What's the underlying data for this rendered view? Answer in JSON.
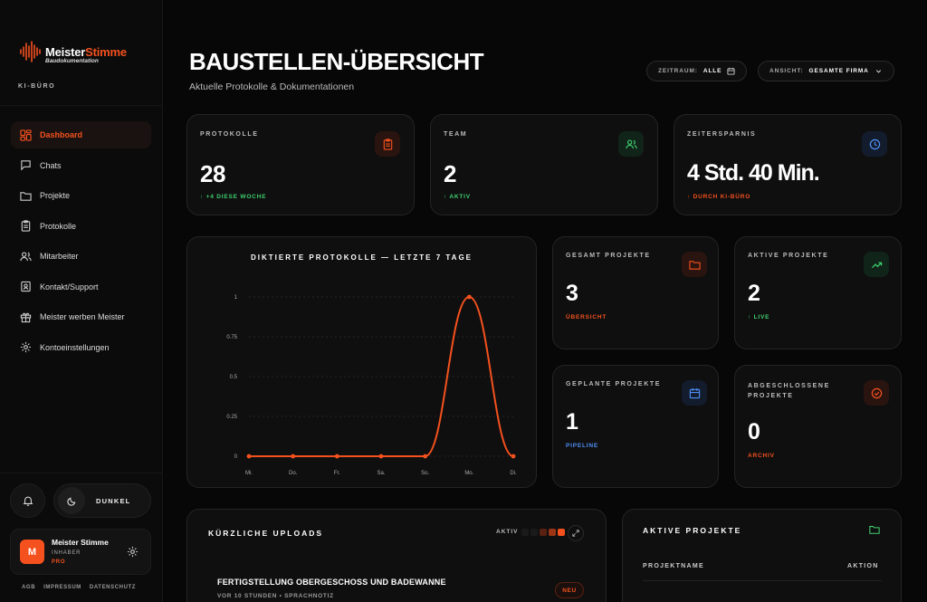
{
  "app": {
    "logo_name_a": "Meister",
    "logo_name_b": "Stimme",
    "logo_sub": "Baudokumentation",
    "section_label": "KI-BÜRO"
  },
  "nav": [
    {
      "label": "Dashboard",
      "icon": "dashboard-icon",
      "active": true
    },
    {
      "label": "Chats",
      "icon": "chat-icon"
    },
    {
      "label": "Projekte",
      "icon": "folder-icon"
    },
    {
      "label": "Protokolle",
      "icon": "clipboard-icon"
    },
    {
      "label": "Mitarbeiter",
      "icon": "users-icon"
    },
    {
      "label": "Kontakt/Support",
      "icon": "contact-card-icon"
    },
    {
      "label": "Meister werben Meister",
      "icon": "gift-icon"
    },
    {
      "label": "Kontoeinstellungen",
      "icon": "gear-icon"
    }
  ],
  "theme": {
    "label": "DUNKEL"
  },
  "user": {
    "initial": "M",
    "name": "Meister Stimme",
    "role": "INHABER",
    "plan": "PRO"
  },
  "footer": [
    "AGB",
    "IMPRESSUM",
    "DATENSCHUTZ"
  ],
  "header": {
    "title": "BAUSTELLEN-ÜBERSICHT",
    "subtitle": "Aktuelle Protokolle & Dokumentationen",
    "filter_period": {
      "key": "ZEITRAUM:",
      "value": "ALLE"
    },
    "filter_view": {
      "key": "ANSICHT:",
      "value": "GESAMTE FIRMA"
    }
  },
  "stats": {
    "protokolle": {
      "label": "PROTOKOLLE",
      "value": "28",
      "note": "↑ +4 DIESE WOCHE"
    },
    "team": {
      "label": "TEAM",
      "value": "2",
      "note": "↑ AKTIV"
    },
    "zeit": {
      "label": "ZEITERSPARNIS",
      "value": "4 Std. 40 Min.",
      "note": "↑ DURCH KI-BÜRO"
    }
  },
  "projects": {
    "gesamt": {
      "label": "GESAMT PROJEKTE",
      "value": "3",
      "note": "ÜBERSICHT"
    },
    "aktiv": {
      "label": "AKTIVE PROJEKTE",
      "value": "2",
      "note": "↑ LIVE"
    },
    "geplant": {
      "label": "GEPLANTE PROJEKTE",
      "value": "1",
      "note": "PIPELINE"
    },
    "abgeschlossen": {
      "label": "ABGESCHLOSSENE PROJEKTE",
      "value": "0",
      "note": "ARCHIV"
    }
  },
  "chart_data": {
    "type": "line",
    "title": "DIKTIERTE PROTOKOLLE — LETZTE 7 TAGE",
    "categories": [
      "Mi.",
      "Do.",
      "Fr.",
      "Sa.",
      "So.",
      "Mo.",
      "Di."
    ],
    "values": [
      0,
      0,
      0,
      0,
      0,
      1,
      0
    ],
    "ylim": [
      0,
      1
    ],
    "yticks": [
      "0",
      "0.25",
      "0.5",
      "0.75",
      "1"
    ],
    "grid": true,
    "color": "#f4511e"
  },
  "uploads": {
    "title": "KÜRZLICHE UPLOADS",
    "activity_label": "AKTIV",
    "item_title": "FERTIGSTELLUNG OBERGESCHOSS UND BADEWANNE",
    "item_meta": "VOR 10 STUNDEN • SPRACHNOTIZ",
    "item_badge": "NEU"
  },
  "active_projects": {
    "title": "AKTIVE PROJEKTE",
    "col_name": "PROJEKTNAME",
    "col_action": "AKTION"
  },
  "colors": {
    "accent": "#f4511e",
    "green": "#3ecf6e",
    "blue": "#4f8ff7",
    "background": "#070707"
  }
}
